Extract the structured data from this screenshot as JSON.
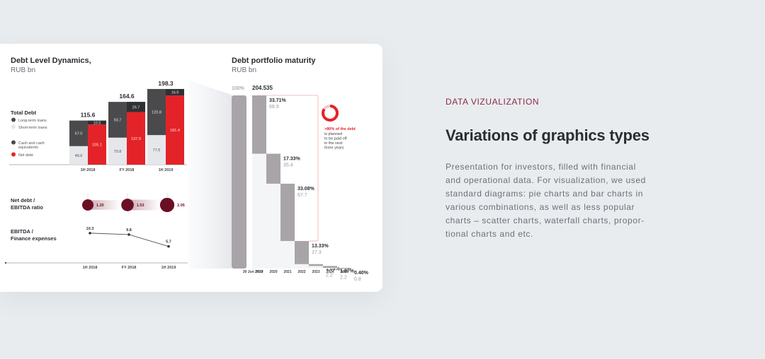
{
  "right_panel": {
    "eyebrow": "DATA VIZUALIZATION",
    "headline": "Variations of graphics types",
    "description": "Presentation for investors, filled with financial\nand operational data. For visualization, we used\nstandard diagrams: pie charts and bar charts in\nvarious combinations, as well as less popular\ncharts – scatter charts, waterfall charts, propor-\ntional charts and etc."
  },
  "colors": {
    "dark": "#4a4a4c",
    "light": "#e6e7ea",
    "red": "#e42329",
    "maroon": "#6b0f24",
    "grey": "#a8a4a8"
  },
  "chart_data": [
    {
      "type": "bar",
      "title": "Debt Level Dynamics,",
      "subtitle": "RUB bn",
      "legend_title": "Total Debt",
      "legend": [
        "Long-term loans",
        "Short-term loans",
        "Cash and cash equivalents",
        "Net debt"
      ],
      "categories": [
        "1H 2018",
        "FY 2018",
        "1H 2019"
      ],
      "totals": [
        "115.6",
        "164.6",
        "198.3"
      ],
      "series": [
        {
          "name": "Long-term loans",
          "values": [
            67.0,
            93.7,
            120.8
          ]
        },
        {
          "name": "Short-term loans",
          "values": [
            48.6,
            70.8,
            77.5
          ]
        },
        {
          "name": "Cash and cash equivalents",
          "values": [
            10.5,
            26.7,
            16.9
          ]
        },
        {
          "name": "Net debt",
          "values": [
            105.1,
            137.9,
            181.4
          ]
        }
      ],
      "series_labels": [
        [
          "67.0",
          "93.7",
          "120.8"
        ],
        [
          "48.6",
          "70.8",
          "77.5"
        ],
        [
          "10.5",
          "26.7",
          "16.9"
        ],
        [
          "105.1",
          "137.9",
          "181.4"
        ]
      ]
    },
    {
      "type": "scatter",
      "title": "Net debt /",
      "title2": "EBITDA ratio",
      "categories": [
        "1H 2018",
        "FY 2018",
        "1H 2019"
      ],
      "values": [
        1.2,
        1.53,
        2.05
      ],
      "labels": [
        "1.20",
        "1.53",
        "2.05"
      ]
    },
    {
      "type": "line",
      "title": "EBITDA /",
      "title2": "Finance expenses",
      "categories": [
        "1H 2018",
        "FY 2018",
        "1H 2019"
      ],
      "values": [
        10.3,
        9.8,
        5.7
      ],
      "labels": [
        "10.3",
        "9.8",
        "5.7"
      ]
    },
    {
      "type": "bar",
      "title": "Debt portfolio maturity",
      "subtitle": "RUB bn",
      "total_label": "100%",
      "total_value": "204.535",
      "start_category": "30 Jun 2019",
      "categories": [
        "2019",
        "2020",
        "2021",
        "2022",
        "2023",
        "2024",
        "2025"
      ],
      "values": [
        68.9,
        35.4,
        67.7,
        27.3,
        2.2,
        2.2,
        0.8
      ],
      "value_labels": [
        "68.9",
        "35.4",
        "67.7",
        "27.3",
        "2.2",
        "2.2",
        "0.8"
      ],
      "percent_labels": [
        "33.71%",
        "17.33%",
        "33.08%",
        "13.33%",
        "1.09%",
        "1.07%",
        "0.40%"
      ],
      "callout": {
        "title": ">80% of the debt",
        "lines": [
          "is planned",
          "to be paid off",
          "in the next",
          "three years"
        ]
      }
    }
  ]
}
